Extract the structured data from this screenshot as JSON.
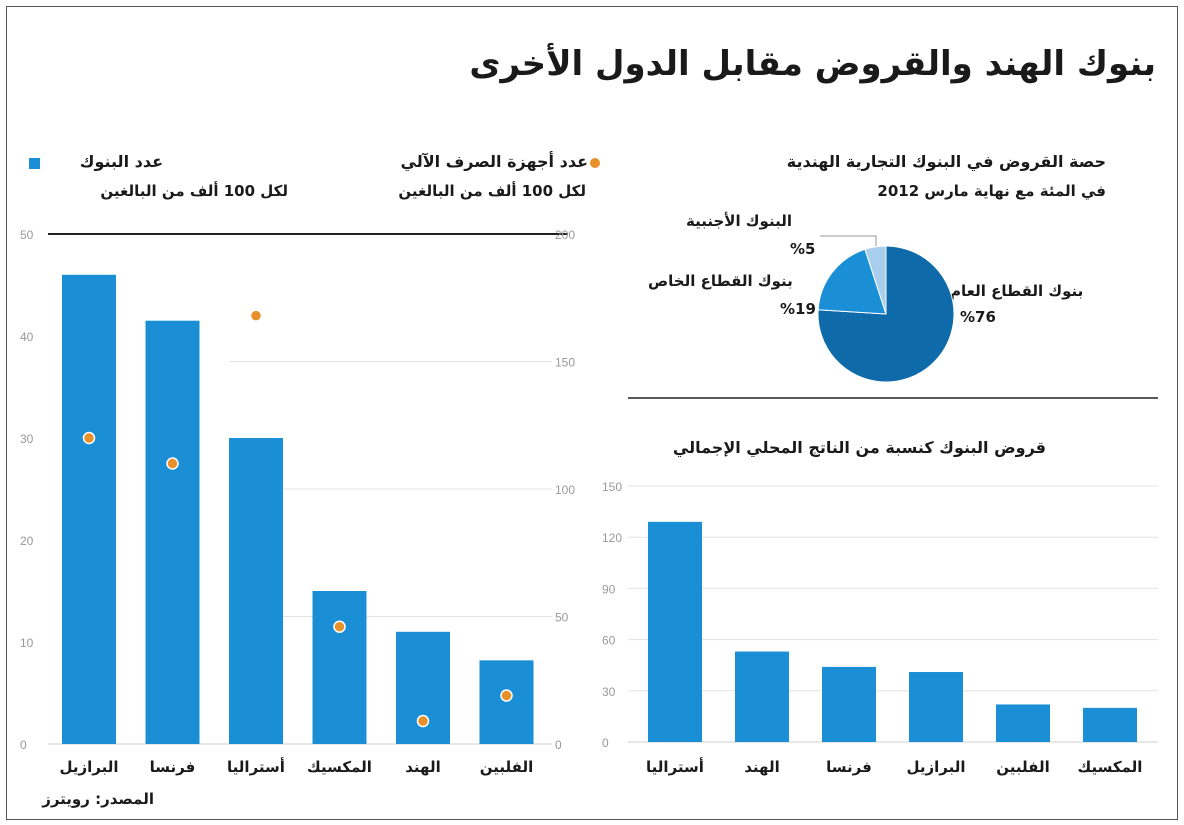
{
  "title": "بنوك الهند والقروض مقابل الدول الأخرى",
  "source": "المصدر: رويترز",
  "chart_data": [
    {
      "type": "bar",
      "categories": [
        "البرازيل",
        "فرنسا",
        "أستراليا",
        "المكسيك",
        "الهند",
        "الفلبين"
      ],
      "series": [
        {
          "name": "عدد البنوك",
          "unit": "لكل 100 ألف من البالغين",
          "values": [
            46,
            41.5,
            30,
            15,
            11,
            8.2
          ],
          "color": "#1a8fd6"
        },
        {
          "name": "عدد أجهزة الصرف الآلي",
          "unit": "لكل 100 ألف من البالغين",
          "values": [
            120,
            110,
            168,
            46,
            9,
            19
          ],
          "color": "#e8902a"
        }
      ],
      "ylim_left": [
        0,
        50
      ],
      "yticks_left": [
        0,
        10,
        20,
        30,
        40,
        50
      ],
      "ylim_right": [
        0,
        200
      ],
      "yticks_right": [
        0,
        50,
        100,
        150,
        200
      ],
      "grid": true
    },
    {
      "type": "pie",
      "title": "حصة القروض في البنوك التجارية الهندية",
      "subtitle": "في المئة مع نهاية مارس 2012",
      "slices": [
        {
          "label": "بنوك القطاع العام",
          "value": 76,
          "value_label": "%76",
          "color": "#0e6aa8"
        },
        {
          "label": "بنوك القطاع الخاص",
          "value": 19,
          "value_label": "%19",
          "color": "#1a8fd6"
        },
        {
          "label": "البنوك الأجنبية",
          "value": 5,
          "value_label": "%5",
          "color": "#a9cdec"
        }
      ]
    },
    {
      "type": "bar",
      "title": "قروض البنوك كنسبة من الناتج المحلي الإجمالي",
      "categories": [
        "أستراليا",
        "الهند",
        "فرنسا",
        "البرازيل",
        "الفلبين",
        "المكسيك"
      ],
      "values": [
        129,
        53,
        44,
        41,
        22,
        20
      ],
      "color": "#1a8fd6",
      "ylim": [
        0,
        150
      ],
      "yticks": [
        0,
        30,
        60,
        90,
        120,
        150
      ],
      "grid": true
    }
  ]
}
